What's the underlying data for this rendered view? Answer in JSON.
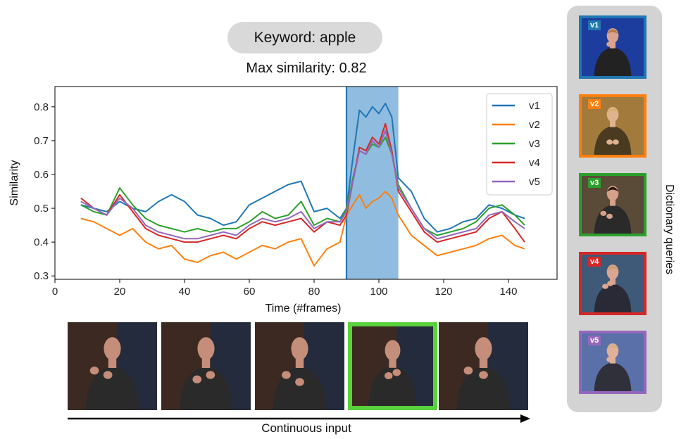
{
  "keyword_pill": {
    "text": "Keyword: apple"
  },
  "max_similarity": {
    "text": "Max similarity: 0.82"
  },
  "dictionary": {
    "label": "Dictionary queries",
    "queries": [
      {
        "tag": "v1",
        "color": "#1f77b4",
        "bg": "#1c3c9e"
      },
      {
        "tag": "v2",
        "color": "#ff7f0e",
        "bg": "#a27a3c"
      },
      {
        "tag": "v3",
        "color": "#2ca02c",
        "bg": "#5a4a38"
      },
      {
        "tag": "v4",
        "color": "#d62728",
        "bg": "#3e5a78"
      },
      {
        "tag": "v5",
        "color": "#9467bd",
        "bg": "#5a70a8"
      }
    ]
  },
  "input_strip": {
    "label": "Continuous input",
    "frame_count": 5,
    "selected_frame": 3,
    "selected_color": "#5ad23c"
  },
  "chart_data": {
    "type": "line",
    "title": "",
    "xlabel": "Time (#frames)",
    "ylabel": "Similarity",
    "xlim": [
      0,
      155
    ],
    "ylim": [
      0.29,
      0.86
    ],
    "xticks": [
      0,
      20,
      40,
      60,
      80,
      100,
      120,
      140
    ],
    "yticks": [
      0.3,
      0.4,
      0.5,
      0.6,
      0.7,
      0.8
    ],
    "grid": false,
    "legend_position": "top-right",
    "highlight": {
      "x_start": 90,
      "x_end": 106,
      "color": "#8fbcdf"
    },
    "x": [
      8,
      12,
      16,
      20,
      24,
      28,
      32,
      36,
      40,
      44,
      48,
      52,
      56,
      60,
      64,
      68,
      72,
      76,
      80,
      84,
      88,
      90,
      92,
      94,
      96,
      98,
      100,
      102,
      104,
      106,
      110,
      114,
      118,
      122,
      126,
      130,
      134,
      138,
      142,
      145
    ],
    "series": [
      {
        "name": "v1",
        "color": "#1f77b4",
        "values": [
          0.51,
          0.5,
          0.49,
          0.52,
          0.5,
          0.49,
          0.52,
          0.54,
          0.52,
          0.48,
          0.47,
          0.45,
          0.46,
          0.51,
          0.53,
          0.55,
          0.57,
          0.58,
          0.49,
          0.5,
          0.47,
          0.5,
          0.65,
          0.79,
          0.77,
          0.8,
          0.78,
          0.81,
          0.77,
          0.59,
          0.55,
          0.47,
          0.43,
          0.44,
          0.46,
          0.47,
          0.51,
          0.5,
          0.48,
          0.47
        ]
      },
      {
        "name": "v2",
        "color": "#ff7f0e",
        "values": [
          0.47,
          0.46,
          0.44,
          0.42,
          0.44,
          0.4,
          0.38,
          0.39,
          0.35,
          0.34,
          0.36,
          0.37,
          0.35,
          0.37,
          0.39,
          0.38,
          0.4,
          0.41,
          0.33,
          0.38,
          0.4,
          0.48,
          0.51,
          0.54,
          0.5,
          0.52,
          0.53,
          0.55,
          0.53,
          0.48,
          0.42,
          0.39,
          0.36,
          0.37,
          0.38,
          0.39,
          0.41,
          0.42,
          0.39,
          0.38
        ]
      },
      {
        "name": "v3",
        "color": "#2ca02c",
        "values": [
          0.51,
          0.49,
          0.48,
          0.56,
          0.51,
          0.47,
          0.45,
          0.44,
          0.43,
          0.44,
          0.43,
          0.44,
          0.44,
          0.46,
          0.49,
          0.47,
          0.48,
          0.52,
          0.45,
          0.47,
          0.46,
          0.5,
          0.59,
          0.67,
          0.66,
          0.69,
          0.68,
          0.71,
          0.66,
          0.57,
          0.5,
          0.44,
          0.42,
          0.43,
          0.44,
          0.46,
          0.5,
          0.51,
          0.48,
          0.45
        ]
      },
      {
        "name": "v4",
        "color": "#d62728",
        "values": [
          0.53,
          0.5,
          0.48,
          0.54,
          0.49,
          0.44,
          0.42,
          0.41,
          0.4,
          0.4,
          0.41,
          0.42,
          0.41,
          0.44,
          0.46,
          0.45,
          0.46,
          0.47,
          0.43,
          0.46,
          0.45,
          0.48,
          0.58,
          0.68,
          0.67,
          0.71,
          0.69,
          0.75,
          0.67,
          0.55,
          0.49,
          0.43,
          0.4,
          0.41,
          0.42,
          0.43,
          0.47,
          0.49,
          0.44,
          0.4
        ]
      },
      {
        "name": "v5",
        "color": "#9467bd",
        "values": [
          0.52,
          0.5,
          0.48,
          0.53,
          0.5,
          0.45,
          0.43,
          0.42,
          0.41,
          0.41,
          0.42,
          0.43,
          0.42,
          0.45,
          0.47,
          0.46,
          0.47,
          0.49,
          0.44,
          0.46,
          0.46,
          0.49,
          0.58,
          0.67,
          0.66,
          0.7,
          0.68,
          0.73,
          0.66,
          0.56,
          0.5,
          0.44,
          0.41,
          0.42,
          0.43,
          0.44,
          0.48,
          0.49,
          0.46,
          0.44
        ]
      }
    ]
  }
}
